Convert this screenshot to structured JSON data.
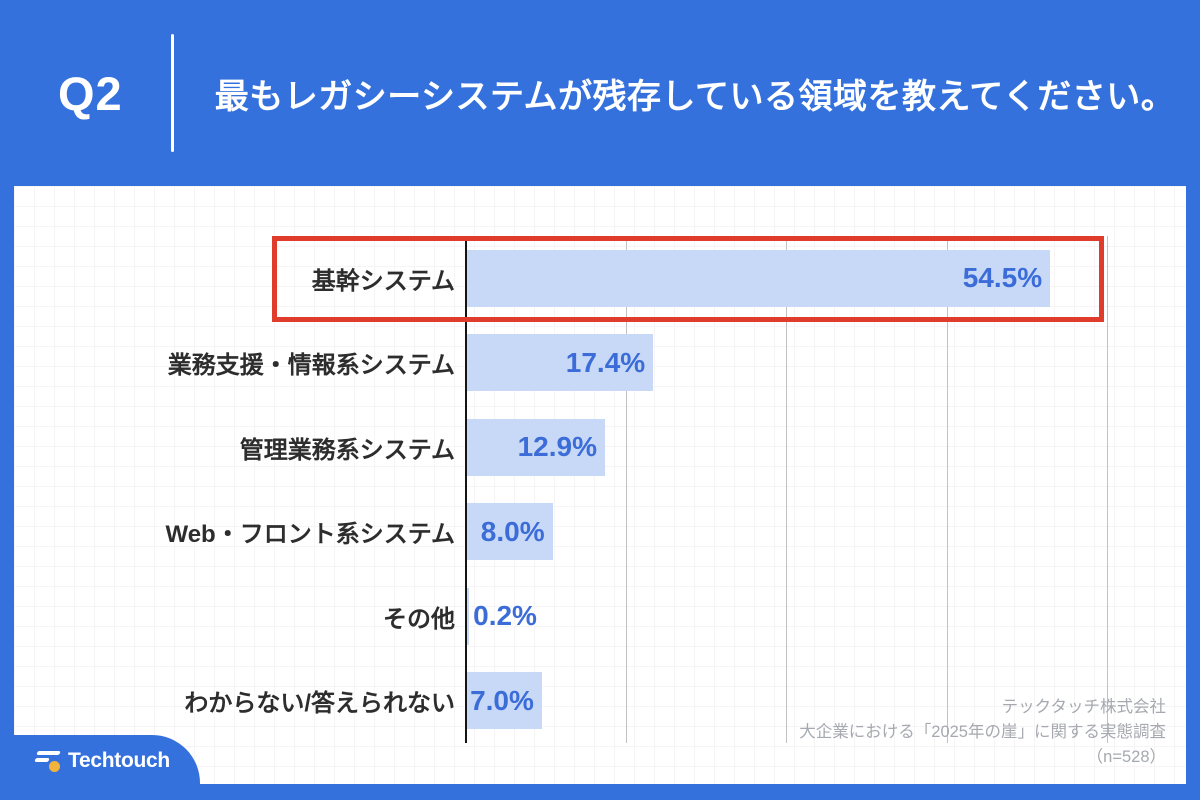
{
  "header": {
    "q_label": "Q2",
    "title": "最もレガシーシステムが残存している領域を教えてください。"
  },
  "chart_data": {
    "type": "bar",
    "orientation": "horizontal",
    "title": "最もレガシーシステムが残存している領域を教えてください。",
    "categories": [
      "基幹システム",
      "業務支援・情報系システム",
      "管理業務系システム",
      "Web・フロント系システム",
      "その他",
      "わからない/答えられない"
    ],
    "values": [
      54.5,
      17.4,
      12.9,
      8.0,
      0.2,
      7.0
    ],
    "value_labels": [
      "54.5%",
      "17.4%",
      "12.9%",
      "8.0%",
      "0.2%",
      "7.0%"
    ],
    "xlim": [
      0,
      60
    ],
    "gridline_step": 15,
    "grid": "vertical-only",
    "highlighted_index": 0,
    "bar_color": "#c7d9f6",
    "value_color": "#3b6cd8",
    "highlight_border_color": "#e03c2b"
  },
  "source": {
    "lines": [
      "テックタッチ株式会社",
      "大企業における「2025年の崖」に関する実態調査",
      "（n=528）"
    ]
  },
  "logo": {
    "text": "Techtouch"
  },
  "colors": {
    "background": "#3571dd",
    "card": "#ffffff",
    "axis": "#141414",
    "gridline": "#c2c2c2",
    "category_text": "#2d2d2d",
    "source_text": "#a6a9b0"
  }
}
